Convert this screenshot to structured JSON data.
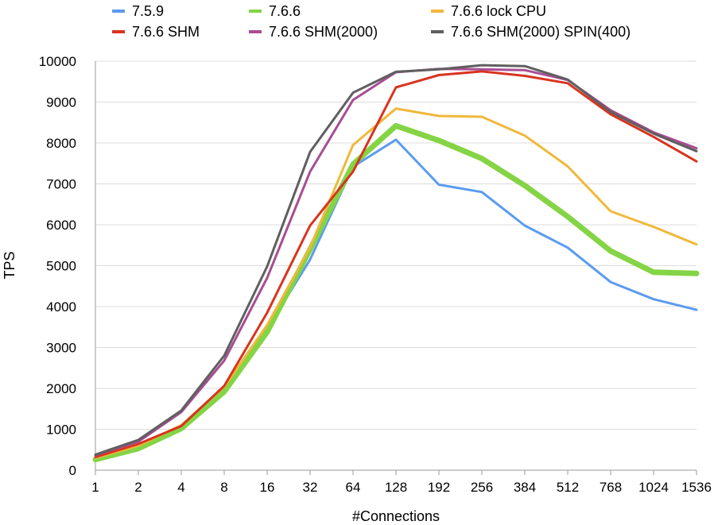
{
  "chart_data": {
    "type": "line",
    "title": "",
    "xlabel": "#Connections",
    "ylabel": "TPS",
    "categories": [
      "1",
      "2",
      "4",
      "8",
      "16",
      "32",
      "64",
      "128",
      "192",
      "256",
      "384",
      "512",
      "768",
      "1024",
      "1536"
    ],
    "ylim": [
      0,
      10000
    ],
    "yticks": [
      "0",
      "1000",
      "2000",
      "3000",
      "4000",
      "5000",
      "6000",
      "7000",
      "8000",
      "9000",
      "10000"
    ],
    "grid": true,
    "legend_position": "top",
    "series": [
      {
        "name": "7.5.9",
        "color": "#5b9bf0",
        "values": [
          300,
          580,
          1080,
          2000,
          3450,
          5150,
          7420,
          8080,
          6980,
          6800,
          5980,
          5440,
          4600,
          4180,
          3920
        ]
      },
      {
        "name": "7.6.6",
        "color": "#84d445",
        "values": [
          260,
          530,
          1020,
          1920,
          3380,
          5400,
          7480,
          8420,
          8060,
          7620,
          6960,
          6200,
          5360,
          4840,
          4810
        ]
      },
      {
        "name": "7.6.6 lock CPU",
        "color": "#f0b83a",
        "values": [
          300,
          600,
          1100,
          2040,
          3550,
          5450,
          7950,
          8840,
          8660,
          8640,
          8180,
          7430,
          6330,
          5950,
          5520
        ]
      },
      {
        "name": "7.6.6 SHM",
        "color": "#d8341f",
        "values": [
          320,
          640,
          1080,
          2060,
          3850,
          5980,
          7300,
          9360,
          9660,
          9750,
          9640,
          9460,
          8700,
          8150,
          7550
        ]
      },
      {
        "name": "7.6.6 SHM(2000)",
        "color": "#a84d94",
        "values": [
          370,
          700,
          1420,
          2680,
          4700,
          7300,
          9050,
          9730,
          9810,
          9800,
          9780,
          9540,
          8800,
          8260,
          7870
        ]
      },
      {
        "name": "7.6.6 SHM(2000) SPIN(400)",
        "color": "#5f5f5f",
        "values": [
          380,
          740,
          1460,
          2800,
          4980,
          7780,
          9230,
          9740,
          9800,
          9900,
          9880,
          9550,
          8760,
          8230,
          7800
        ]
      }
    ]
  }
}
